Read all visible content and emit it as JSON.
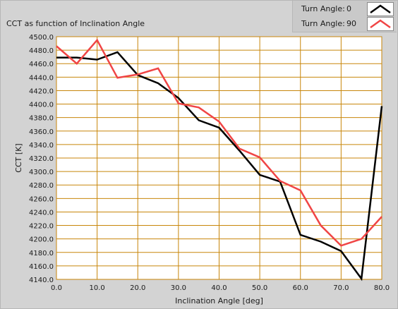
{
  "chart_data": {
    "type": "line",
    "title": "CCT as function of Inclination Angle",
    "xlabel": "Inclination Angle [deg]",
    "ylabel": "CCT [K]",
    "xlim": [
      0,
      80
    ],
    "ylim": [
      4140,
      4500
    ],
    "x_ticks": [
      0,
      10,
      20,
      30,
      40,
      50,
      60,
      70,
      80
    ],
    "x_tick_labels": [
      "0.0",
      "10.0",
      "20.0",
      "30.0",
      "40.0",
      "50.0",
      "60.0",
      "70.0",
      "80.0"
    ],
    "y_ticks": [
      4140,
      4160,
      4180,
      4200,
      4220,
      4240,
      4260,
      4280,
      4300,
      4320,
      4340,
      4360,
      4380,
      4400,
      4420,
      4440,
      4460,
      4480,
      4500
    ],
    "y_tick_labels": [
      "4140.0",
      "4160.0",
      "4180.0",
      "4200.0",
      "4220.0",
      "4240.0",
      "4260.0",
      "4280.0",
      "4300.0",
      "4320.0",
      "4340.0",
      "4360.0",
      "4380.0",
      "4400.0",
      "4420.0",
      "4440.0",
      "4460.0",
      "4480.0",
      "4500.0"
    ],
    "grid": true,
    "legend_position": "top-right",
    "colors": {
      "plot_bg": "#ffffff",
      "grid": "#c8860a",
      "series_0": "#000000",
      "series_90": "#f04545"
    },
    "series": [
      {
        "name": "Turn Angle:",
        "legend_value": "0",
        "color": "#000000",
        "x": [
          0,
          5,
          10,
          15,
          20,
          25,
          30,
          35,
          40,
          45,
          50,
          55,
          60,
          65,
          70,
          75,
          80
        ],
        "values": [
          4469,
          4469,
          4466,
          4477,
          4443,
          4431,
          4409,
          4376,
          4365,
          4331,
          4295,
          4285,
          4206,
          4196,
          4182,
          4141,
          4397
        ]
      },
      {
        "name": "Turn Angle:",
        "legend_value": "90",
        "color": "#f04545",
        "x": [
          0,
          5,
          10,
          15,
          20,
          25,
          30,
          35,
          40,
          45,
          50,
          55,
          60,
          65,
          70,
          75,
          80
        ],
        "values": [
          4486,
          4460,
          4495,
          4439,
          4444,
          4453,
          4401,
          4395,
          4374,
          4334,
          4321,
          4286,
          4272,
          4220,
          4190,
          4200,
          4233
        ]
      }
    ]
  }
}
